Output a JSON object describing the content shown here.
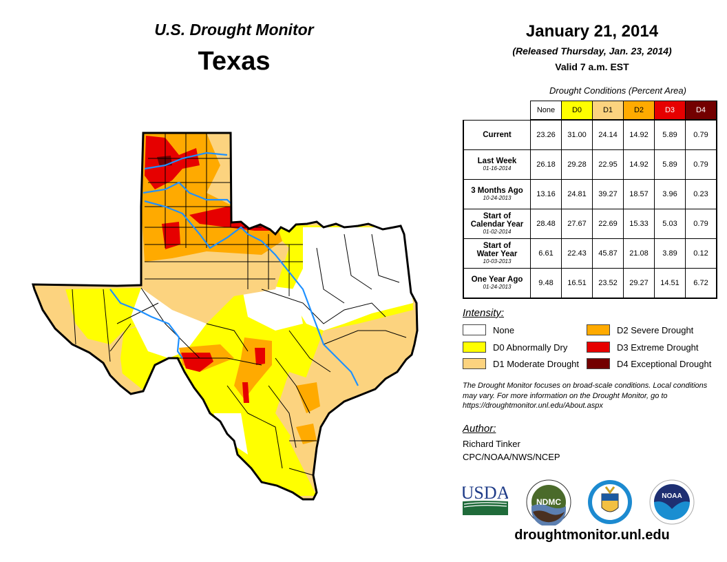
{
  "header": {
    "title": "U.S. Drought Monitor",
    "region": "Texas",
    "date": "January 21, 2014",
    "released": "(Released Thursday, Jan. 23, 2014)",
    "valid": "Valid 7 a.m. EST"
  },
  "table": {
    "caption": "Drought Conditions (Percent Area)",
    "columns": [
      {
        "label": "None",
        "color": "#ffffff",
        "text_color": "#000000"
      },
      {
        "label": "D0",
        "color": "#ffff00",
        "text_color": "#000000"
      },
      {
        "label": "D1",
        "color": "#fcd37f",
        "text_color": "#000000"
      },
      {
        "label": "D2",
        "color": "#ffaa00",
        "text_color": "#000000"
      },
      {
        "label": "D3",
        "color": "#e60000",
        "text_color": "#ffffff"
      },
      {
        "label": "D4",
        "color": "#730000",
        "text_color": "#ffffff"
      }
    ],
    "rows": [
      {
        "label": "Current",
        "label2": "",
        "date": "",
        "values": [
          "23.26",
          "31.00",
          "24.14",
          "14.92",
          "5.89",
          "0.79"
        ]
      },
      {
        "label": "Last Week",
        "label2": "",
        "date": "01-16-2014",
        "values": [
          "26.18",
          "29.28",
          "22.95",
          "14.92",
          "5.89",
          "0.79"
        ]
      },
      {
        "label": "3 Months Ago",
        "label2": "",
        "date": "10-24-2013",
        "values": [
          "13.16",
          "24.81",
          "39.27",
          "18.57",
          "3.96",
          "0.23"
        ]
      },
      {
        "label": "Start of",
        "label2": "Calendar Year",
        "date": "01-02-2014",
        "values": [
          "28.48",
          "27.67",
          "22.69",
          "15.33",
          "5.03",
          "0.79"
        ]
      },
      {
        "label": "Start of",
        "label2": "Water Year",
        "date": "10-03-2013",
        "values": [
          "6.61",
          "22.43",
          "45.87",
          "21.08",
          "3.89",
          "0.12"
        ]
      },
      {
        "label": "One Year Ago",
        "label2": "",
        "date": "01-24-2013",
        "values": [
          "9.48",
          "16.51",
          "23.52",
          "29.27",
          "14.51",
          "6.72"
        ]
      }
    ]
  },
  "legend": {
    "title": "Intensity:",
    "items": [
      {
        "label": "None",
        "color": "#ffffff"
      },
      {
        "label": "D0 Abnormally Dry",
        "color": "#ffff00"
      },
      {
        "label": "D1 Moderate Drought",
        "color": "#fcd37f"
      },
      {
        "label": "D2 Severe Drought",
        "color": "#ffaa00"
      },
      {
        "label": "D3 Extreme Drought",
        "color": "#e60000"
      },
      {
        "label": "D4 Exceptional Drought",
        "color": "#730000"
      }
    ]
  },
  "note": "The Drought Monitor focuses on broad-scale conditions. Local conditions may vary. For more information on the Drought Monitor, go to https://droughtmonitor.unl.edu/About.aspx",
  "author": {
    "heading": "Author:",
    "name": "Richard Tinker",
    "org": "CPC/NOAA/NWS/NCEP"
  },
  "logos": [
    {
      "name": "usda-logo",
      "text": "USDA"
    },
    {
      "name": "ndmc-logo",
      "text": "NDMC"
    },
    {
      "name": "commerce-seal-logo",
      "text": ""
    },
    {
      "name": "noaa-logo",
      "text": "NOAA"
    }
  ],
  "website": "droughtmonitor.unl.edu",
  "map": {
    "state": "Texas",
    "river_color": "#1e90ff",
    "dominant_categories": {
      "panhandle": "D1-D4",
      "west": "D0-D1",
      "trans_pecos_central": "None",
      "east": "None",
      "southeast_coast": "D0-D2",
      "south": "D0-D3"
    }
  }
}
